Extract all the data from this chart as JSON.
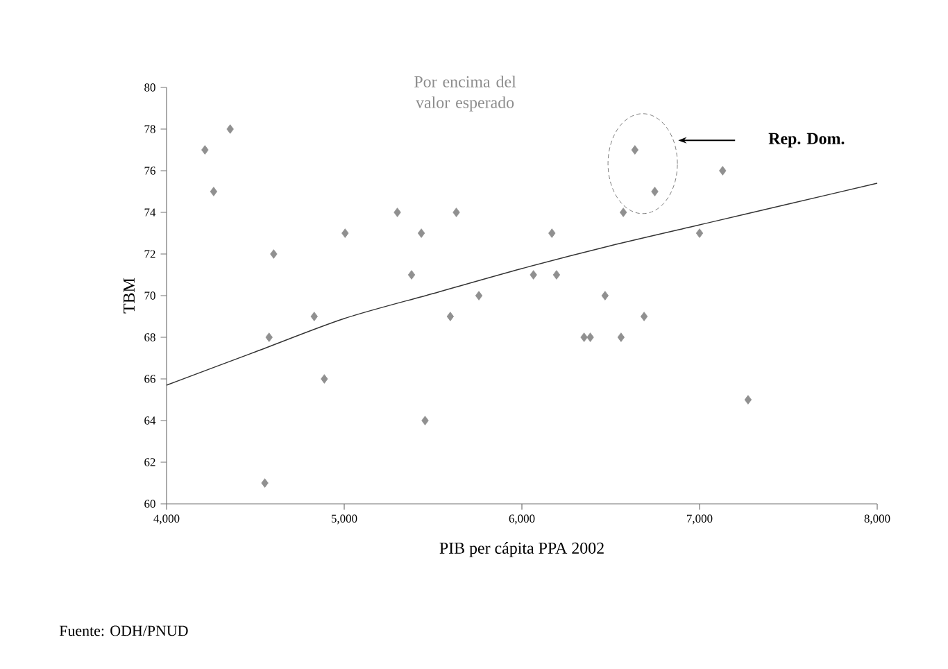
{
  "chart_data": {
    "type": "scatter",
    "xlabel": "PIB per cápita PPA 2002",
    "ylabel": "TBM",
    "xlim": [
      4000,
      8000
    ],
    "ylim": [
      60,
      80
    ],
    "xticks": [
      {
        "value": 4000,
        "label": "4,000"
      },
      {
        "value": 5000,
        "label": "5,000"
      },
      {
        "value": 6000,
        "label": "6,000"
      },
      {
        "value": 7000,
        "label": "7,000"
      },
      {
        "value": 8000,
        "label": "8,000"
      }
    ],
    "yticks": [
      60,
      62,
      64,
      66,
      68,
      70,
      72,
      74,
      76,
      78,
      80
    ],
    "grid": false,
    "series": [
      {
        "marker": "diamond",
        "color": "#909090",
        "x": [
          4216,
          4265,
          4358,
          4603,
          4577,
          4553,
          4831,
          4888,
          5005,
          5299,
          5434,
          5379,
          5455,
          5597,
          5631,
          5758,
          6636,
          6748,
          6571,
          7130,
          7000,
          6169,
          6065,
          6195,
          6468,
          6688,
          6350,
          6385,
          6558,
          7273
        ],
        "values": [
          77,
          75,
          78,
          72,
          68,
          61,
          69,
          66,
          73,
          74,
          73,
          71,
          64,
          69,
          74,
          70,
          77,
          75,
          74,
          76,
          73,
          73,
          71,
          71,
          70,
          69,
          68,
          68,
          68,
          65
        ]
      },
      {
        "type": "line",
        "color": "#333333",
        "marker": "none",
        "line_style": "solid",
        "x": [
          4000,
          4500,
          5000,
          5500,
          6000,
          6500,
          7000,
          7500,
          8000
        ],
        "values": [
          65.7,
          67.3,
          68.9,
          70.1,
          71.3,
          72.4,
          73.4,
          74.4,
          75.4
        ]
      }
    ],
    "annotations": [
      "Por encima del valor esperado",
      "Rep. Dom.",
      "Fuente: ODH/PNUD"
    ]
  }
}
